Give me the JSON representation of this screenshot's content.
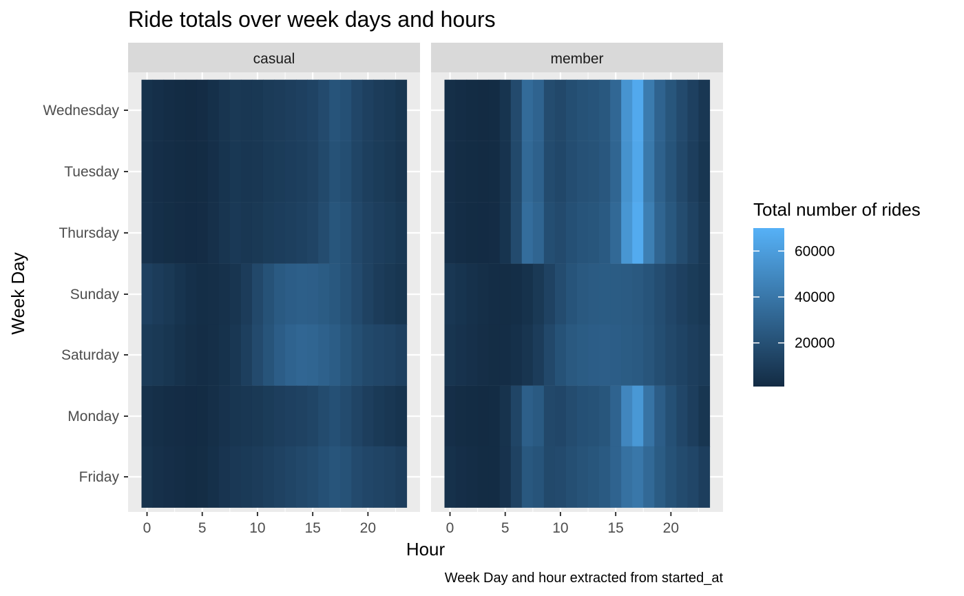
{
  "chart_data": {
    "type": "heatmap",
    "title": "Ride totals over week days and hours",
    "xlabel": "Hour",
    "ylabel": "Week Day",
    "caption": "Week Day and hour extracted from started_at",
    "x": [
      0,
      1,
      2,
      3,
      4,
      5,
      6,
      7,
      8,
      9,
      10,
      11,
      12,
      13,
      14,
      15,
      16,
      17,
      18,
      19,
      20,
      21,
      22,
      23
    ],
    "x_ticks": [
      0,
      5,
      10,
      15,
      20
    ],
    "xlim": [
      -0.5,
      23.5
    ],
    "y_categories": [
      "Wednesday",
      "Tuesday",
      "Thursday",
      "Sunday",
      "Saturday",
      "Monday",
      "Friday"
    ],
    "legend": {
      "title": "Total number of rides",
      "range": [
        1000,
        70000
      ],
      "ticks": [
        20000,
        40000,
        60000
      ],
      "low_color": "#132B43",
      "high_color": "#56B1F7",
      "position": "right"
    },
    "panels": [
      {
        "label": "casual",
        "rows": [
          {
            "day": "Wednesday",
            "values": [
              4500,
              3200,
              2200,
              1500,
              1100,
              1600,
              3500,
              6000,
              8000,
              7000,
              7500,
              9000,
              10000,
              11000,
              12000,
              13500,
              17000,
              22000,
              20000,
              15000,
              12000,
              10000,
              8500,
              6500
            ]
          },
          {
            "day": "Tuesday",
            "values": [
              4000,
              2800,
              2000,
              1400,
              1000,
              1500,
              3200,
              5600,
              7500,
              6600,
              7200,
              8500,
              9500,
              10500,
              11500,
              13000,
              16500,
              21000,
              19000,
              14500,
              11500,
              9500,
              8000,
              6000
            ]
          },
          {
            "day": "Thursday",
            "values": [
              4700,
              3300,
              2300,
              1600,
              1200,
              1700,
              3600,
              6100,
              8200,
              7300,
              8000,
              9500,
              10500,
              11500,
              12500,
              14000,
              18000,
              23000,
              21000,
              16000,
              13000,
              11000,
              9500,
              7500
            ]
          },
          {
            "day": "Sunday",
            "values": [
              12000,
              10000,
              8000,
              5500,
              3500,
              2500,
              3000,
              4000,
              6000,
              10000,
              16000,
              21000,
              25000,
              27000,
              28000,
              27500,
              26000,
              24000,
              21000,
              17000,
              13000,
              10000,
              8000,
              6500
            ]
          },
          {
            "day": "Saturday",
            "values": [
              9000,
              8000,
              6500,
              4500,
              3000,
              2200,
              3000,
              4500,
              7000,
              11500,
              17000,
              22000,
              27000,
              30000,
              31500,
              31000,
              29000,
              26500,
              23000,
              19500,
              16500,
              15000,
              14000,
              12000
            ]
          },
          {
            "day": "Monday",
            "values": [
              4000,
              3000,
              2200,
              1600,
              1200,
              1500,
              3000,
              4800,
              6500,
              7000,
              8000,
              9500,
              11000,
              12000,
              13000,
              14500,
              17500,
              20000,
              17500,
              14000,
              11000,
              8500,
              7000,
              5500
            ]
          },
          {
            "day": "Friday",
            "values": [
              5000,
              3800,
              2800,
              2000,
              1500,
              1800,
              3500,
              5800,
              7800,
              8500,
              9800,
              11500,
              13000,
              14500,
              16000,
              17500,
              20000,
              22500,
              21000,
              17000,
              15000,
              14000,
              13000,
              11000
            ]
          }
        ]
      },
      {
        "label": "member",
        "rows": [
          {
            "day": "Wednesday",
            "values": [
              3000,
              2000,
              1400,
              1100,
              1500,
              5500,
              17000,
              34000,
              30000,
              18000,
              16000,
              19000,
              21000,
              22000,
              24000,
              32000,
              55000,
              66000,
              42000,
              30000,
              23000,
              17000,
              12000,
              7000
            ]
          },
          {
            "day": "Tuesday",
            "values": [
              2800,
              1800,
              1300,
              1000,
              1400,
              5200,
              16500,
              33000,
              29000,
              17500,
              15500,
              18500,
              20500,
              21500,
              23500,
              31000,
              54000,
              65000,
              41000,
              29000,
              22000,
              16000,
              11000,
              6500
            ]
          },
          {
            "day": "Thursday",
            "values": [
              3200,
              2200,
              1500,
              1200,
              1600,
              5600,
              17500,
              35000,
              31000,
              19000,
              17000,
              20000,
              22000,
              23000,
              25000,
              33000,
              56000,
              67000,
              44000,
              31000,
              24000,
              18000,
              13000,
              8000
            ]
          },
          {
            "day": "Sunday",
            "values": [
              7000,
              5500,
              4200,
              3000,
              2000,
              1800,
              2500,
              4500,
              8000,
              13000,
              18000,
              22000,
              24500,
              25500,
              26000,
              26000,
              25500,
              24500,
              22000,
              18500,
              15000,
              12000,
              9500,
              7500
            ]
          },
          {
            "day": "Saturday",
            "values": [
              6000,
              4800,
              3700,
              2600,
              1800,
              2000,
              3500,
              6000,
              10000,
              16000,
              21000,
              24500,
              26000,
              27000,
              27500,
              27000,
              26000,
              25000,
              22500,
              19000,
              16000,
              13500,
              11000,
              9000
            ]
          },
          {
            "day": "Monday",
            "values": [
              2800,
              1800,
              1300,
              1000,
              1400,
              5000,
              14500,
              28000,
              25000,
              16000,
              15000,
              18000,
              20000,
              21000,
              23000,
              30000,
              48000,
              57000,
              38000,
              27000,
              20000,
              15000,
              11000,
              6500
            ]
          },
          {
            "day": "Friday",
            "values": [
              4000,
              2800,
              2000,
              1500,
              1500,
              4800,
              13000,
              24000,
              22000,
              16500,
              17000,
              19500,
              21500,
              23000,
              25000,
              30000,
              37000,
              40000,
              33000,
              26000,
              21000,
              17500,
              15000,
              11000
            ]
          }
        ]
      }
    ]
  }
}
